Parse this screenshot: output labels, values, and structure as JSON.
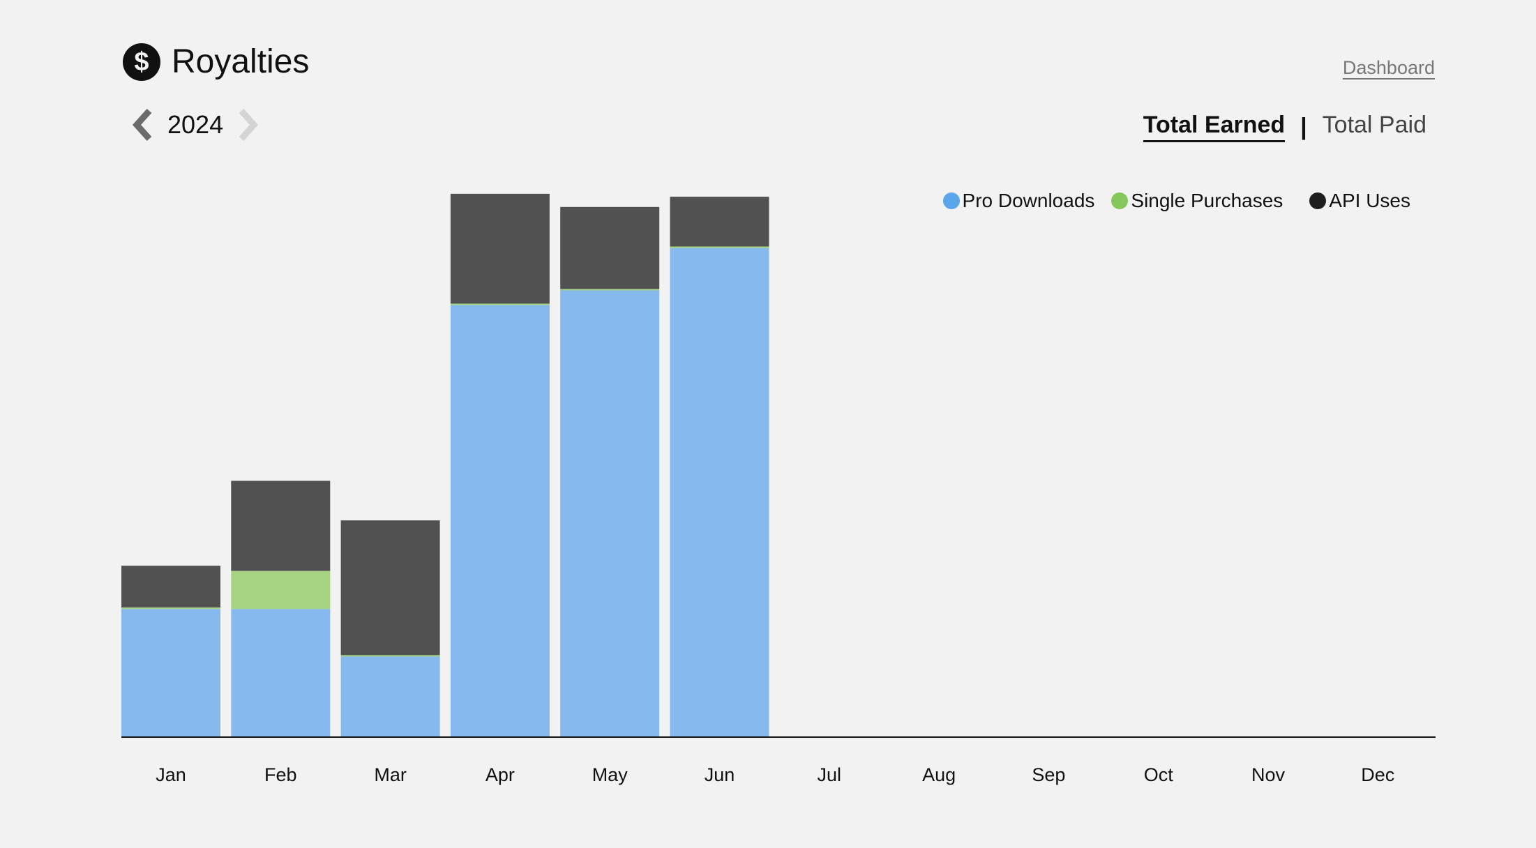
{
  "header": {
    "title": "Royalties",
    "icon": "dollar-icon",
    "dashboard_label": "Dashboard"
  },
  "year_nav": {
    "year": "2024",
    "prev_icon": "chevron-left-icon",
    "next_icon": "chevron-right-icon"
  },
  "toggle": {
    "earned_label": "Total Earned",
    "separator": "|",
    "paid_label": "Total Paid",
    "active": "Total Earned"
  },
  "colors": {
    "pro": "#86baef",
    "single": "#a5d382",
    "api": "#515151",
    "pro_legend": "#5ba5ea",
    "single_legend": "#86c75b",
    "api_legend": "#1e1e1e",
    "axis": "#111111"
  },
  "chart_data": {
    "type": "bar",
    "stacked": true,
    "categories": [
      "Jan",
      "Feb",
      "Mar",
      "Apr",
      "May",
      "Jun",
      "Jul",
      "Aug",
      "Sep",
      "Oct",
      "Nov",
      "Dec"
    ],
    "series": [
      {
        "name": "Pro Downloads",
        "values": [
          175,
          175,
          110,
          590,
          610,
          668,
          0,
          0,
          0,
          0,
          0,
          0
        ]
      },
      {
        "name": "Single Purchases",
        "values": [
          2,
          52,
          2,
          2,
          2,
          2,
          0,
          0,
          0,
          0,
          0,
          0
        ]
      },
      {
        "name": "API Uses",
        "values": [
          57,
          123,
          184,
          150,
          112,
          68,
          0,
          0,
          0,
          0,
          0,
          0
        ]
      }
    ],
    "ylim": [
      0,
      740
    ],
    "legend_position": "top-right",
    "grid": false,
    "title": "",
    "xlabel": "",
    "ylabel": ""
  }
}
